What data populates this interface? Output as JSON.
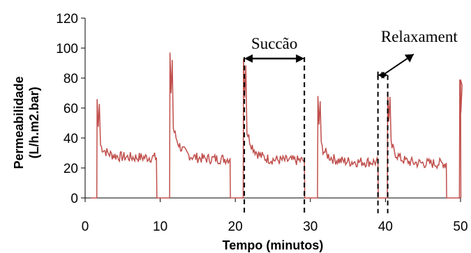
{
  "chart_data": {
    "type": "line",
    "title": "",
    "xlabel": "Tempo (minutos)",
    "ylabel_lines": [
      "Permeabilidade",
      "(L/h.m2.bar)"
    ],
    "xlim": [
      0,
      50
    ],
    "ylim": [
      0,
      120
    ],
    "x_ticks": [
      0,
      10,
      20,
      30,
      40,
      50
    ],
    "y_ticks": [
      0,
      20,
      40,
      60,
      80,
      100,
      120
    ],
    "grid": false,
    "line_color": "#c0504d",
    "series": [
      {
        "cycles": [
          {
            "start": 1.6,
            "peak": 66,
            "drop_at": 2.2,
            "plateau": 27,
            "end": 9.5
          },
          {
            "start": 11.3,
            "peak": 97,
            "drop_at": 11.8,
            "plateau": 26,
            "end": 19.3
          },
          {
            "start": 21.1,
            "peak": 93,
            "drop_at": 21.6,
            "plateau": 25,
            "end": 29.2
          },
          {
            "start": 31.0,
            "peak": 68,
            "drop_at": 31.5,
            "plateau": 24,
            "end": 39.0
          },
          {
            "start": 40.3,
            "peak": 71,
            "drop_at": 40.8,
            "plateau": 23,
            "end": 48.1
          },
          {
            "start": 49.9,
            "peak": 79,
            "drop_at": 50,
            "plateau": 79,
            "end": 50
          }
        ]
      }
    ],
    "annotations": {
      "succao": {
        "label": "Succão",
        "x1": 21.2,
        "x2": 29.2,
        "y": 93
      },
      "relaxament": {
        "label": "Relaxament",
        "x1": 39.0,
        "x2": 40.3,
        "y": 82,
        "label_x": 44.5,
        "label_y": 108
      }
    }
  }
}
